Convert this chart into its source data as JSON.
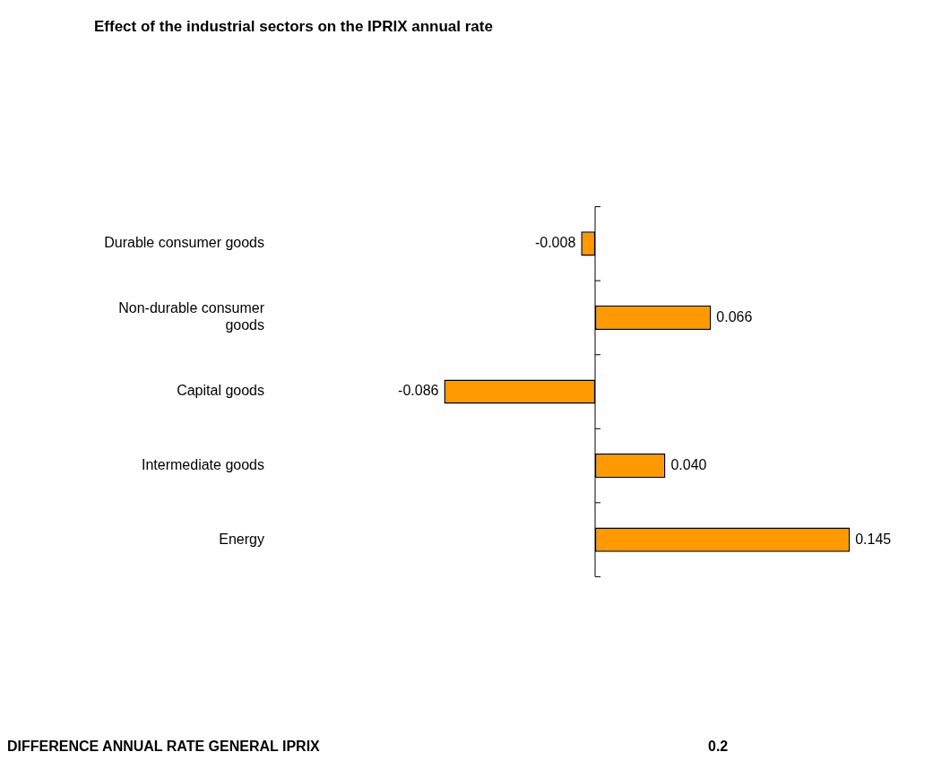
{
  "chart_data": {
    "type": "bar",
    "orientation": "horizontal",
    "title": "Effect of the industrial sectors on the IPRIX annual rate",
    "categories": [
      "Durable consumer goods",
      "Non-durable consumer goods",
      "Capital goods",
      "Intermediate goods",
      "Energy"
    ],
    "values": [
      -0.008,
      0.066,
      -0.086,
      0.04,
      0.145
    ],
    "value_labels": [
      "-0.008",
      "0.066",
      "-0.086",
      "0.040",
      "0.145"
    ],
    "color": "#ff9900",
    "annotations": [
      "DIFFERENCE ANNUAL RATE GENERAL IPRIX",
      "0.2"
    ]
  }
}
